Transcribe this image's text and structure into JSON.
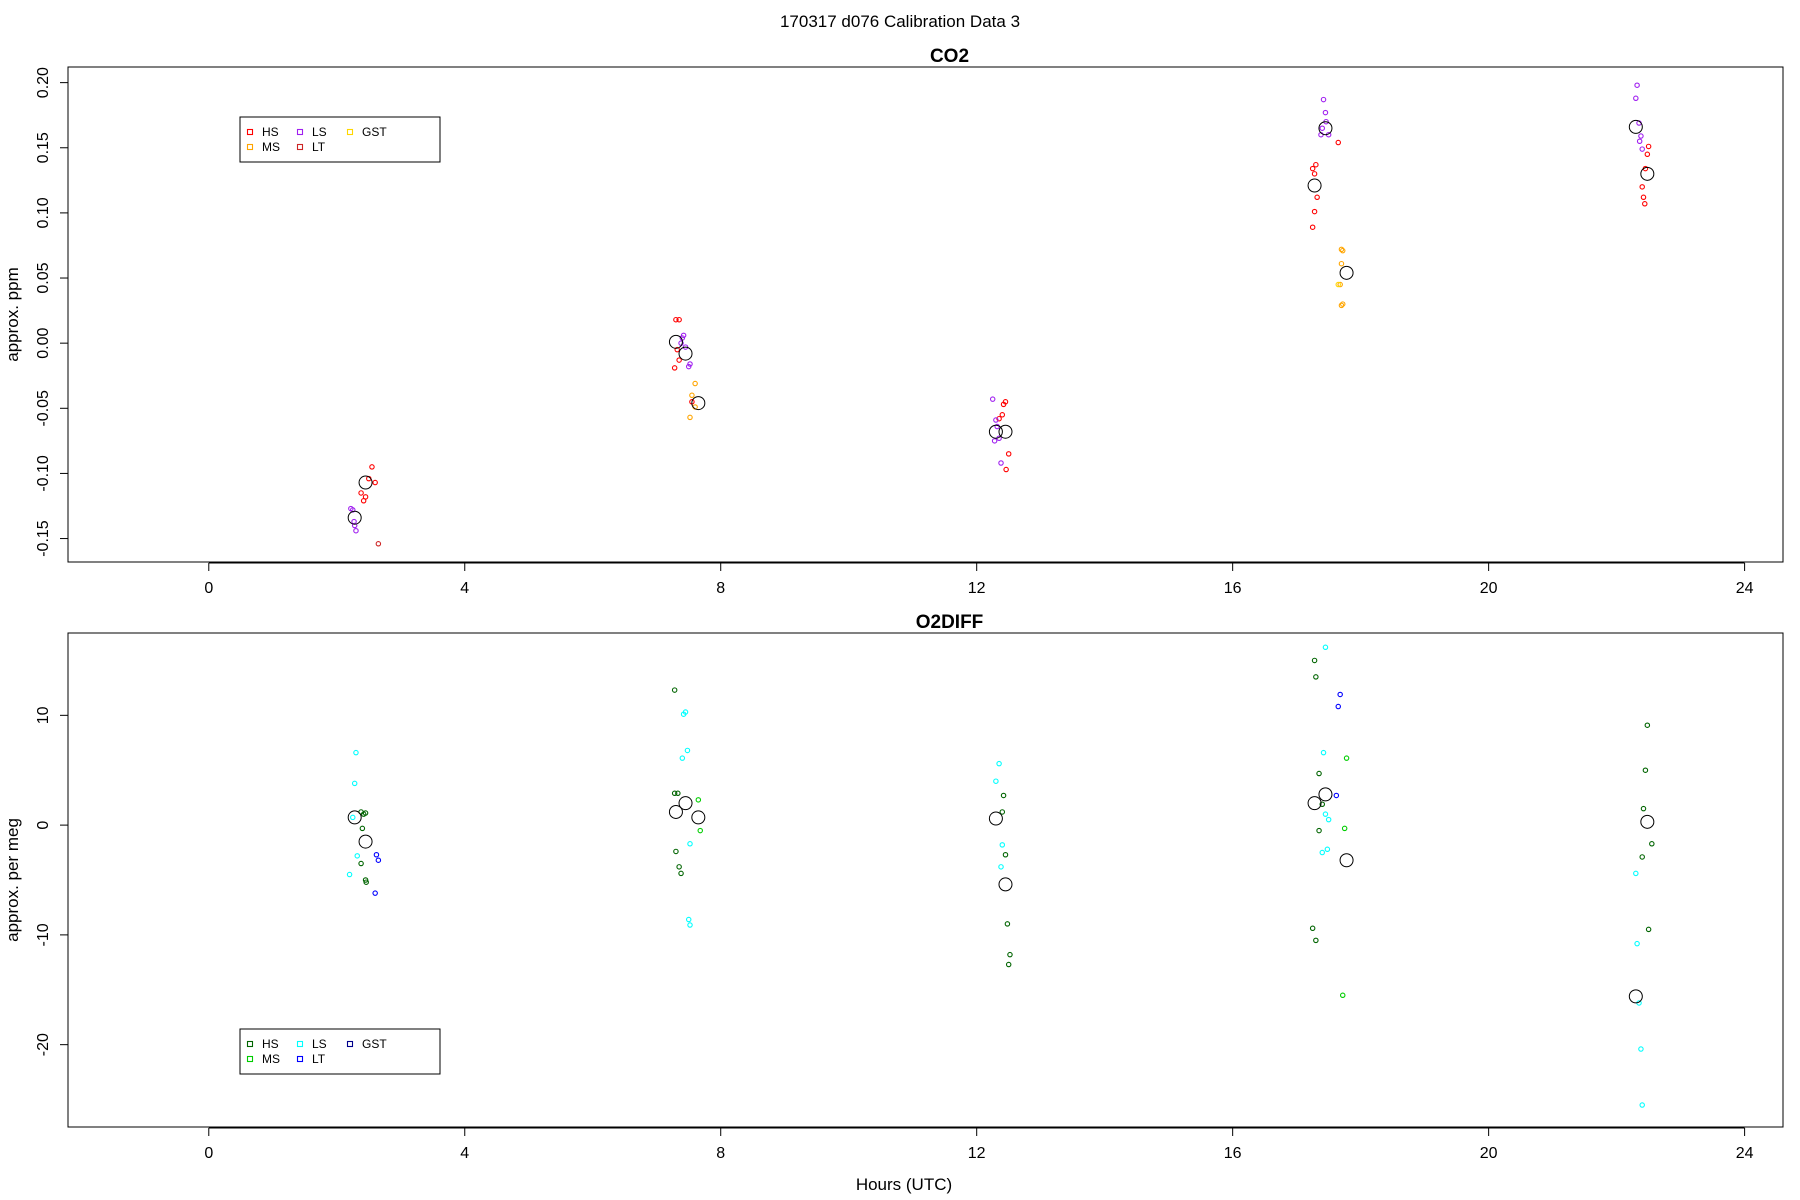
{
  "page_title": "170317   d076   Calibration Data 3",
  "chart_data": [
    {
      "type": "scatter",
      "title": "CO2",
      "xlabel": "",
      "ylabel": "approx. ppm",
      "xlim": [
        -2.2,
        24.6
      ],
      "ylim": [
        -0.168,
        0.212
      ],
      "xticks": [
        0,
        4,
        8,
        12,
        16,
        20,
        24
      ],
      "yticks": [
        -0.15,
        -0.1,
        -0.05,
        0.0,
        0.05,
        0.1,
        0.15,
        0.2
      ],
      "ytick_labels": [
        "-0.15",
        "-0.10",
        "-0.05",
        "0.00",
        "0.05",
        "0.10",
        "0.15",
        "0.20"
      ],
      "grid": false,
      "legend": {
        "placement": "top-left",
        "entries": [
          {
            "name": "HS",
            "color": "#ff0000"
          },
          {
            "name": "MS",
            "color": "#ffa500"
          },
          {
            "name": "LS",
            "color": "#a020f0"
          },
          {
            "name": "LT",
            "color": "#cd2626"
          },
          {
            "name": "GST",
            "color": "#ffd700"
          }
        ]
      },
      "series": [
        {
          "name": "HS",
          "color": "#ff0000",
          "points": [
            [
              2.38,
              -0.115
            ],
            [
              2.42,
              -0.121
            ],
            [
              2.45,
              -0.118
            ],
            [
              2.5,
              -0.104
            ],
            [
              2.55,
              -0.095
            ],
            [
              2.6,
              -0.107
            ],
            [
              7.3,
              0.018
            ],
            [
              7.35,
              0.018
            ],
            [
              7.32,
              -0.005
            ],
            [
              7.35,
              -0.013
            ],
            [
              7.28,
              -0.019
            ],
            [
              7.55,
              -0.045
            ],
            [
              12.42,
              -0.047
            ],
            [
              12.45,
              -0.045
            ],
            [
              12.5,
              -0.085
            ],
            [
              12.46,
              -0.097
            ],
            [
              12.35,
              -0.058
            ],
            [
              12.4,
              -0.055
            ],
            [
              17.25,
              0.134
            ],
            [
              17.28,
              0.13
            ],
            [
              17.3,
              0.137
            ],
            [
              17.32,
              0.112
            ],
            [
              17.28,
              0.101
            ],
            [
              17.25,
              0.089
            ],
            [
              17.65,
              0.154
            ],
            [
              22.5,
              0.151
            ],
            [
              22.48,
              0.145
            ],
            [
              22.4,
              0.12
            ],
            [
              22.42,
              0.112
            ],
            [
              22.44,
              0.107
            ],
            [
              22.45,
              0.134
            ]
          ]
        },
        {
          "name": "MS",
          "color": "#ffa500",
          "points": [
            [
              7.6,
              -0.031
            ],
            [
              7.55,
              -0.04
            ],
            [
              7.6,
              -0.049
            ],
            [
              7.52,
              -0.057
            ],
            [
              17.7,
              0.072
            ],
            [
              17.72,
              0.071
            ],
            [
              17.7,
              0.061
            ],
            [
              17.68,
              0.045
            ],
            [
              17.72,
              0.03
            ],
            [
              17.7,
              0.029
            ]
          ]
        },
        {
          "name": "LS",
          "color": "#a020f0",
          "points": [
            [
              2.22,
              -0.127
            ],
            [
              2.25,
              -0.128
            ],
            [
              2.27,
              -0.137
            ],
            [
              2.28,
              -0.14
            ],
            [
              2.3,
              -0.144
            ],
            [
              7.4,
              0.004
            ],
            [
              7.42,
              0.006
            ],
            [
              7.38,
              0.0
            ],
            [
              7.45,
              -0.003
            ],
            [
              7.5,
              -0.018
            ],
            [
              7.52,
              -0.016
            ],
            [
              12.25,
              -0.043
            ],
            [
              12.3,
              -0.059
            ],
            [
              12.32,
              -0.064
            ],
            [
              12.35,
              -0.073
            ],
            [
              12.28,
              -0.075
            ],
            [
              12.38,
              -0.092
            ],
            [
              17.42,
              0.187
            ],
            [
              17.45,
              0.177
            ],
            [
              17.4,
              0.165
            ],
            [
              17.38,
              0.16
            ],
            [
              17.5,
              0.16
            ],
            [
              17.46,
              0.17
            ],
            [
              22.32,
              0.198
            ],
            [
              22.3,
              0.188
            ],
            [
              22.35,
              0.169
            ],
            [
              22.38,
              0.159
            ],
            [
              22.36,
              0.155
            ],
            [
              22.4,
              0.149
            ]
          ]
        },
        {
          "name": "LT",
          "color": "#cd2626",
          "points": [
            [
              2.65,
              -0.154
            ]
          ]
        },
        {
          "name": "GST",
          "color": "#ffd700",
          "points": [
            [
              17.65,
              0.045
            ]
          ]
        }
      ],
      "means": [
        [
          2.28,
          -0.134
        ],
        [
          2.45,
          -0.107
        ],
        [
          7.3,
          0.001
        ],
        [
          7.45,
          -0.008
        ],
        [
          7.65,
          -0.046
        ],
        [
          12.3,
          -0.068
        ],
        [
          12.45,
          -0.068
        ],
        [
          17.28,
          0.121
        ],
        [
          17.45,
          0.165
        ],
        [
          17.78,
          0.054
        ],
        [
          22.3,
          0.166
        ],
        [
          22.48,
          0.13
        ]
      ]
    },
    {
      "type": "scatter",
      "title": "O2DIFF",
      "xlabel": "Hours (UTC)",
      "ylabel": "approx. per meg",
      "xlim": [
        -2.2,
        24.6
      ],
      "ylim": [
        -27.5,
        17.5
      ],
      "xticks": [
        0,
        4,
        8,
        12,
        16,
        20,
        24
      ],
      "yticks": [
        -20,
        -10,
        0,
        10
      ],
      "ytick_labels": [
        "-20",
        "-10",
        "0",
        "10"
      ],
      "grid": false,
      "legend": {
        "placement": "bottom-left",
        "entries": [
          {
            "name": "HS",
            "color": "#006400"
          },
          {
            "name": "MS",
            "color": "#00cd00"
          },
          {
            "name": "LS",
            "color": "#00ffff"
          },
          {
            "name": "LT",
            "color": "#0000ff"
          },
          {
            "name": "GST",
            "color": "#00008b"
          }
        ]
      },
      "series": [
        {
          "name": "HS",
          "color": "#006400",
          "points": [
            [
              2.38,
              1.2
            ],
            [
              2.42,
              1.0
            ],
            [
              2.45,
              1.1
            ],
            [
              2.4,
              -0.3
            ],
            [
              2.38,
              -3.5
            ],
            [
              2.45,
              -5.0
            ],
            [
              2.46,
              -5.2
            ],
            [
              7.28,
              12.3
            ],
            [
              7.28,
              2.9
            ],
            [
              7.33,
              2.9
            ],
            [
              7.3,
              -2.4
            ],
            [
              7.35,
              -3.8
            ],
            [
              7.38,
              -4.4
            ],
            [
              12.42,
              2.7
            ],
            [
              12.4,
              1.2
            ],
            [
              12.45,
              -2.7
            ],
            [
              12.48,
              -9.0
            ],
            [
              12.52,
              -11.8
            ],
            [
              12.5,
              -12.7
            ],
            [
              17.28,
              15.0
            ],
            [
              17.3,
              13.5
            ],
            [
              17.35,
              4.7
            ],
            [
              17.4,
              1.9
            ],
            [
              17.35,
              -0.5
            ],
            [
              17.25,
              -9.4
            ],
            [
              17.3,
              -10.5
            ],
            [
              22.48,
              9.1
            ],
            [
              22.45,
              5.0
            ],
            [
              22.42,
              1.5
            ],
            [
              22.4,
              -2.9
            ],
            [
              22.55,
              -1.7
            ],
            [
              22.5,
              -9.5
            ]
          ]
        },
        {
          "name": "MS",
          "color": "#00cd00",
          "points": [
            [
              7.65,
              2.3
            ],
            [
              7.68,
              -0.5
            ],
            [
              17.78,
              6.1
            ],
            [
              17.75,
              -0.3
            ],
            [
              17.72,
              -15.5
            ]
          ]
        },
        {
          "name": "LS",
          "color": "#00ffff",
          "points": [
            [
              2.3,
              6.6
            ],
            [
              2.28,
              3.8
            ],
            [
              2.25,
              0.7
            ],
            [
              2.32,
              -2.8
            ],
            [
              2.2,
              -4.5
            ],
            [
              7.45,
              10.3
            ],
            [
              7.42,
              10.1
            ],
            [
              7.48,
              6.8
            ],
            [
              7.4,
              6.1
            ],
            [
              7.52,
              -1.7
            ],
            [
              7.5,
              -8.6
            ],
            [
              7.52,
              -9.1
            ],
            [
              12.35,
              5.6
            ],
            [
              12.3,
              4.0
            ],
            [
              12.4,
              -1.8
            ],
            [
              12.38,
              -3.8
            ],
            [
              17.45,
              16.2
            ],
            [
              17.42,
              6.6
            ],
            [
              17.45,
              1.0
            ],
            [
              17.5,
              0.5
            ],
            [
              17.48,
              -2.2
            ],
            [
              17.4,
              -2.5
            ],
            [
              22.3,
              -4.4
            ],
            [
              22.32,
              -10.8
            ],
            [
              22.35,
              -16.2
            ],
            [
              22.38,
              -20.4
            ],
            [
              22.4,
              -25.5
            ]
          ]
        },
        {
          "name": "LT",
          "color": "#0000ff",
          "points": [
            [
              2.62,
              -2.7
            ],
            [
              2.65,
              -3.2
            ],
            [
              2.6,
              -6.2
            ],
            [
              17.68,
              11.9
            ],
            [
              17.65,
              10.8
            ],
            [
              17.62,
              2.7
            ]
          ]
        },
        {
          "name": "GST",
          "color": "#00008b",
          "points": []
        }
      ],
      "means": [
        [
          2.28,
          0.7
        ],
        [
          2.45,
          -1.5
        ],
        [
          7.3,
          1.2
        ],
        [
          7.45,
          2.0
        ],
        [
          7.65,
          0.7
        ],
        [
          12.3,
          0.6
        ],
        [
          12.45,
          -5.4
        ],
        [
          17.28,
          2.0
        ],
        [
          17.45,
          2.8
        ],
        [
          17.78,
          -3.2
        ],
        [
          22.3,
          -15.6
        ],
        [
          22.48,
          0.3
        ]
      ]
    }
  ]
}
